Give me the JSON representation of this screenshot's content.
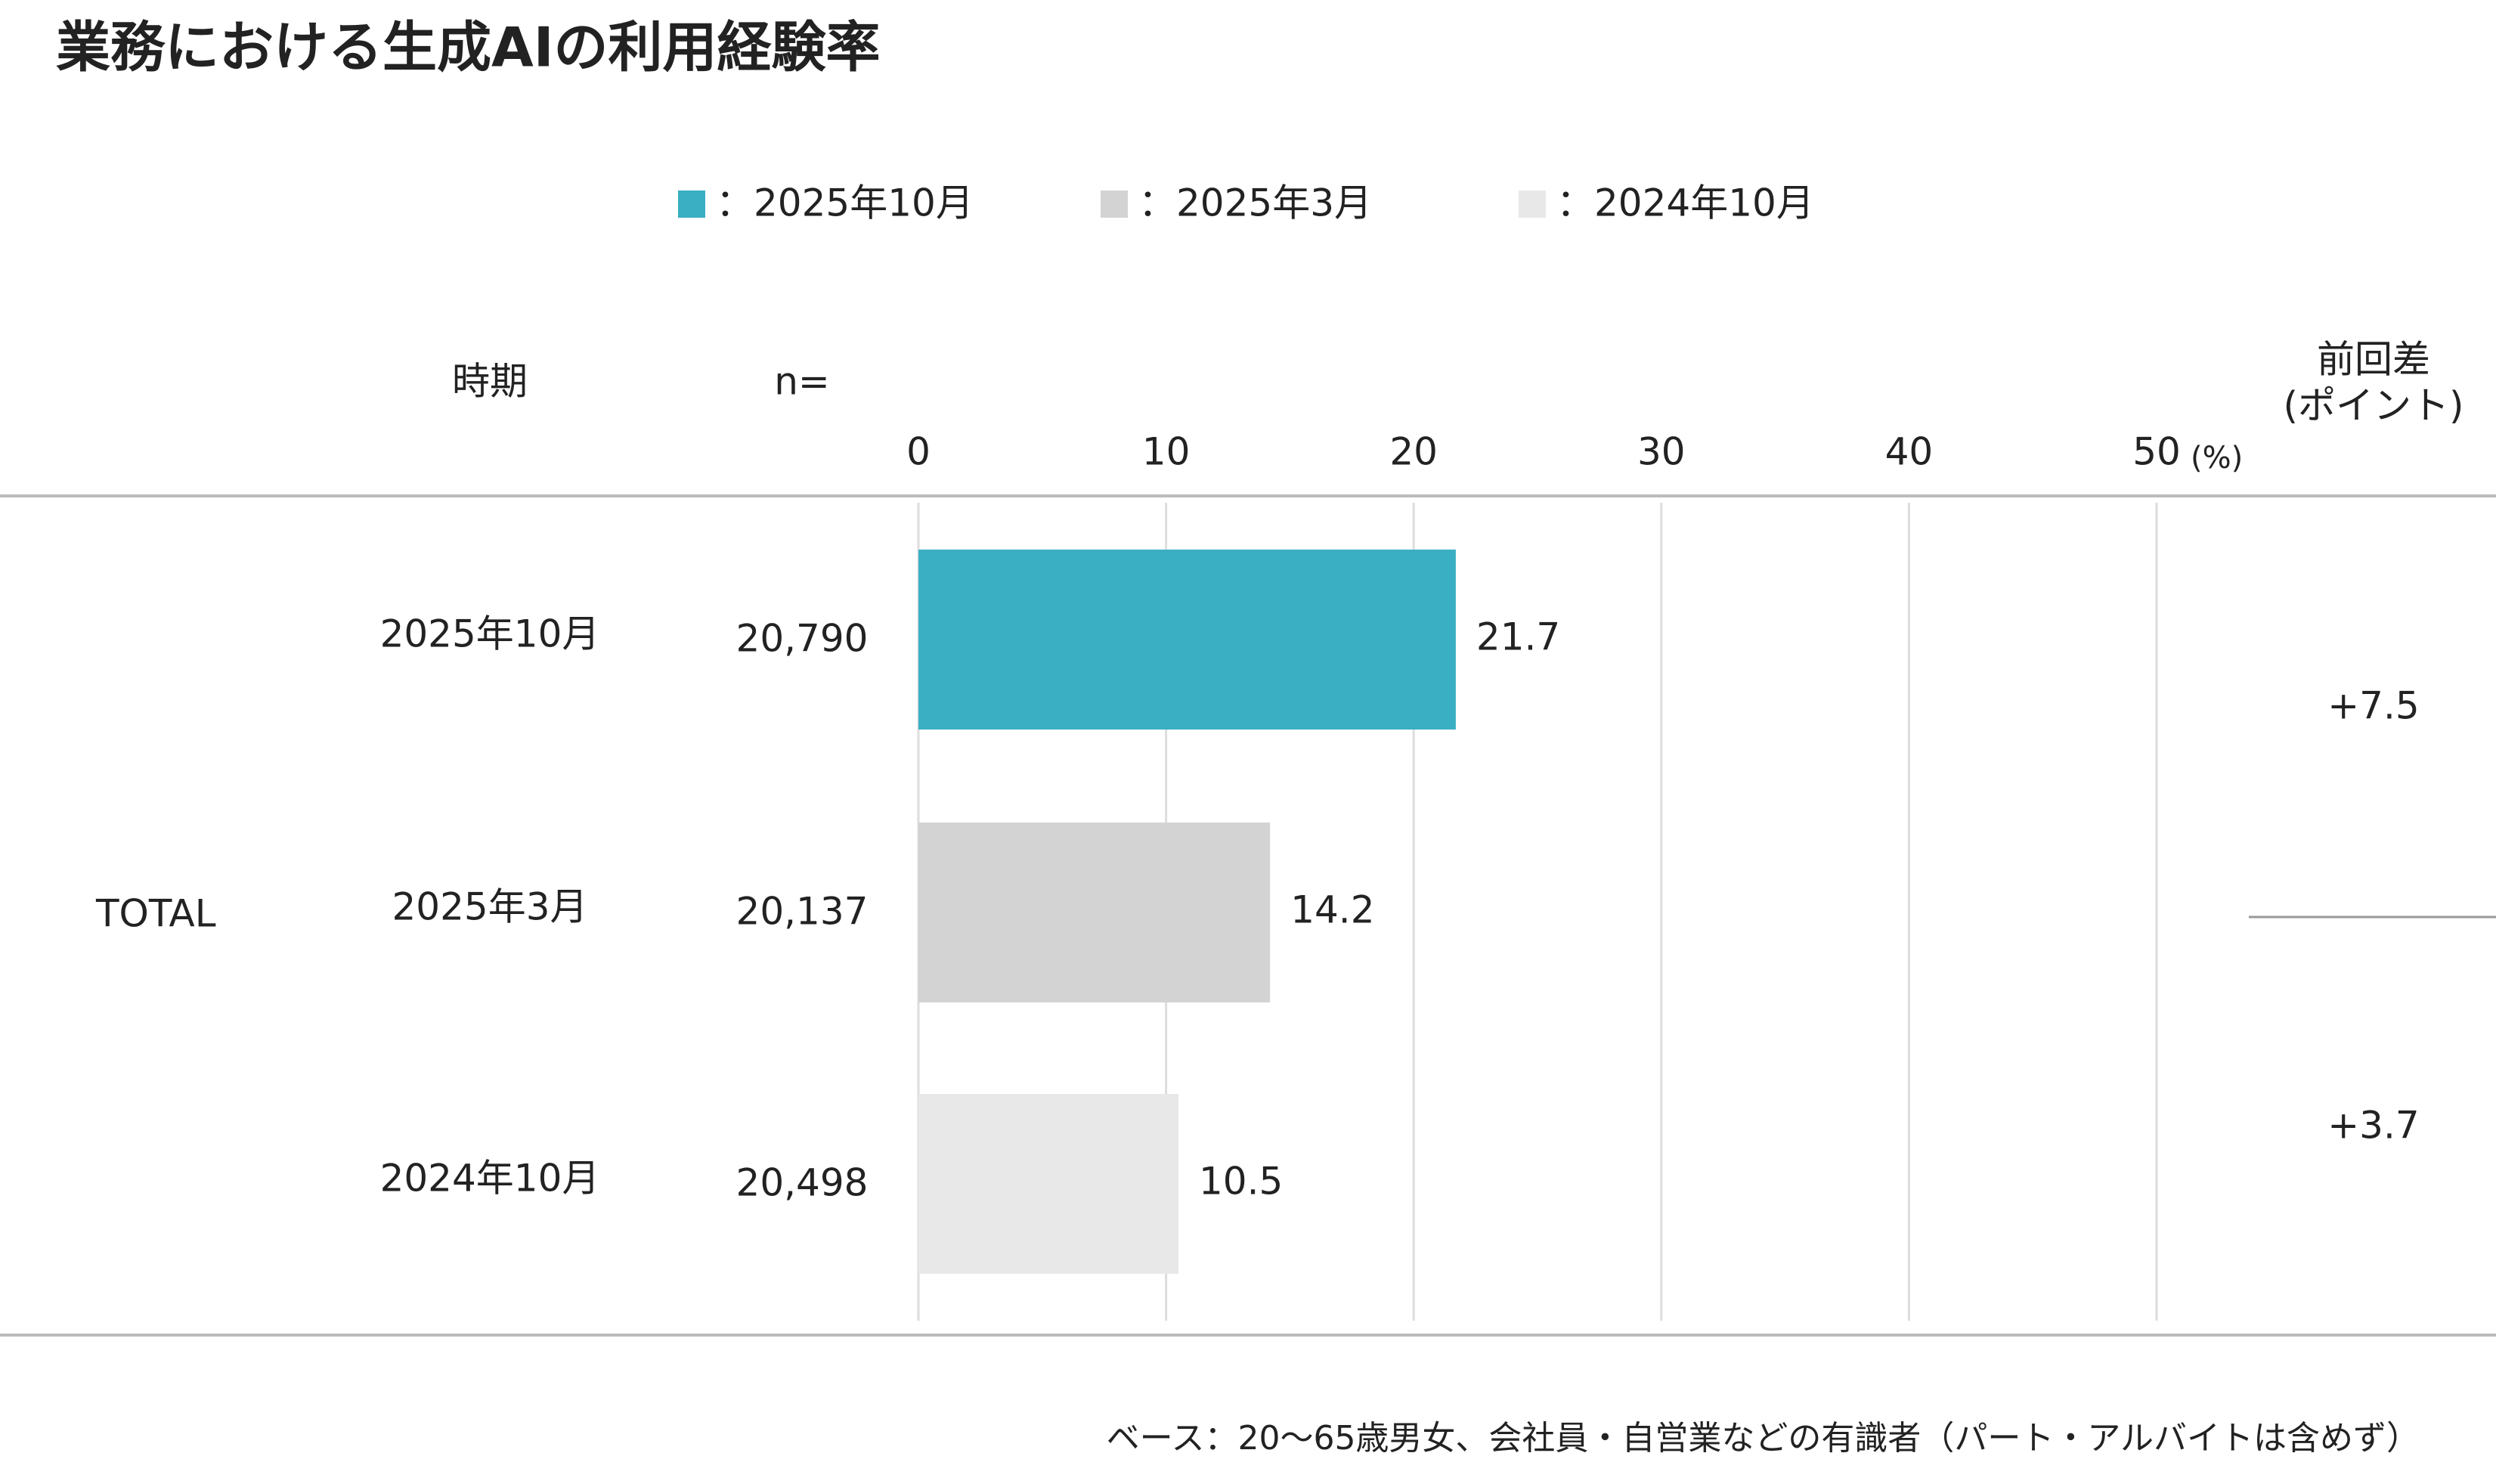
{
  "chart_data": {
    "type": "bar",
    "orientation": "horizontal",
    "title": "業務における生成AIの利用経験率",
    "legend": [
      "：2025年10月",
      "：2025年3月",
      "：2024年10月"
    ],
    "colors": [
      "#3aaec3",
      "#d3d3d3",
      "#e8e8e8"
    ],
    "header": {
      "period": "時期",
      "n": "n=",
      "diff": [
        "前回差",
        "(ポイント)"
      ],
      "unit": "(%)"
    },
    "group": "TOTAL",
    "categories": [
      "2025年10月",
      "2025年3月",
      "2024年10月"
    ],
    "n": [
      "20,790",
      "20,137",
      "20,498"
    ],
    "values": [
      21.7,
      14.2,
      10.5
    ],
    "diffs": [
      "+7.5",
      "+3.7"
    ],
    "xlim": [
      0,
      50
    ],
    "xticks": [
      0,
      10,
      20,
      30,
      40,
      50
    ],
    "grid": true,
    "footnote": "ベース：20～65歳男女、会社員・自営業などの有識者（パート・アルバイトは含めず）"
  }
}
